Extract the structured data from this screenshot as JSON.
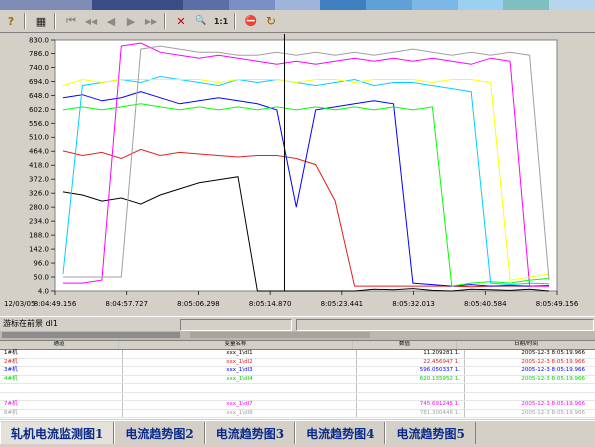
{
  "colorbar": [
    "#7f8db6",
    "#7f8db6",
    "#3a4d86",
    "#3a4d86",
    "#5b6ea6",
    "#7a8fc6",
    "#9fb4d8",
    "#3f7fbf",
    "#5fa0d8",
    "#7cb8e6",
    "#9cd0f0",
    "#7fbfbf",
    "#b6d6ee"
  ],
  "toolbar": {
    "help_icon": "?",
    "grid_icon": "▦",
    "first_icon": "⏮",
    "prev_icon": "◀◀",
    "back_icon": "◀",
    "play_icon": "▶",
    "forward_icon": "▶▶",
    "zoom_fit_icon": "✕",
    "zoom_icon": "🔍",
    "scale_label": "1:1",
    "stop_icon": "⛔",
    "refresh_icon": "↻"
  },
  "chart_data": {
    "type": "line",
    "date_label": "12/03/05",
    "y_ticks": [
      "830.0",
      "786.0",
      "740.0",
      "694.0",
      "648.0",
      "602.0",
      "556.0",
      "510.0",
      "464.0",
      "418.0",
      "372.0",
      "326.0",
      "280.0",
      "234.0",
      "188.0",
      "142.0",
      "96.0",
      "50.0",
      "4.0"
    ],
    "ylim": [
      4.0,
      830.0
    ],
    "x_ticks": [
      "8:04:49.156",
      "8:04:57.727",
      "8:05:06.298",
      "8:05:14.870",
      "8:05:23.441",
      "8:05:32.013",
      "8:05:40.584",
      "8:05:49.156"
    ],
    "cursor_x": 3.2,
    "grid": false,
    "series": [
      {
        "color": "#000000",
        "values": [
          330,
          320,
          300,
          310,
          290,
          320,
          340,
          360,
          370,
          380,
          4,
          4,
          4,
          4,
          4,
          4,
          10,
          8,
          12,
          6,
          4,
          10,
          8,
          6,
          10,
          4
        ]
      },
      {
        "color": "#e02020",
        "values": [
          465,
          450,
          460,
          440,
          470,
          450,
          460,
          455,
          450,
          445,
          450,
          450,
          440,
          420,
          300,
          20,
          20,
          20,
          20,
          20,
          20,
          18,
          20,
          20,
          20,
          20
        ]
      },
      {
        "color": "#0000ff",
        "values": [
          640,
          650,
          630,
          640,
          660,
          640,
          620,
          630,
          640,
          630,
          620,
          600,
          280,
          600,
          610,
          620,
          630,
          620,
          30,
          25,
          20,
          25,
          20,
          22,
          20,
          22
        ]
      },
      {
        "color": "#00d0ff",
        "values": [
          60,
          680,
          690,
          700,
          690,
          710,
          700,
          690,
          680,
          700,
          690,
          700,
          690,
          680,
          690,
          700,
          680,
          690,
          690,
          680,
          670,
          660,
          30,
          25,
          30,
          28
        ]
      },
      {
        "color": "#ff00ff",
        "values": [
          30,
          30,
          40,
          810,
          820,
          790,
          780,
          770,
          780,
          770,
          760,
          750,
          760,
          750,
          760,
          770,
          760,
          770,
          760,
          770,
          760,
          750,
          770,
          760,
          20,
          20
        ]
      },
      {
        "color": "#00ff00",
        "values": [
          600,
          610,
          600,
          610,
          620,
          610,
          600,
          610,
          600,
          610,
          600,
          610,
          600,
          610,
          600,
          610,
          600,
          610,
          600,
          610,
          20,
          30,
          35,
          30,
          40,
          45
        ]
      },
      {
        "color": "#ffff00",
        "values": [
          680,
          700,
          690,
          700,
          700,
          700,
          700,
          700,
          690,
          700,
          700,
          700,
          690,
          700,
          700,
          690,
          700,
          700,
          700,
          690,
          700,
          700,
          690,
          40,
          50,
          60
        ]
      },
      {
        "color": "#a0a0a0",
        "values": [
          50,
          50,
          50,
          50,
          800,
          810,
          800,
          790,
          790,
          780,
          780,
          790,
          780,
          790,
          780,
          790,
          780,
          790,
          800,
          790,
          780,
          790,
          780,
          790,
          780,
          40
        ]
      }
    ]
  },
  "status": {
    "message": "游标在前景 dl1"
  },
  "table": {
    "headers": [
      "通道",
      "变量名称",
      "数值",
      "日期/时间"
    ],
    "rows": [
      {
        "name": "1#机",
        "var": "xxx_1\\dl1",
        "value": "11.209281 1.",
        "time": "2005-12-3 8:05:19.966",
        "color": "#000000"
      },
      {
        "name": "2#机",
        "var": "xxx_1\\dl2",
        "value": "22.456947 1.",
        "time": "2005-12-3 8:05:19.966",
        "color": "#e02020"
      },
      {
        "name": "3#机",
        "var": "xxx_1\\dl3",
        "value": "596.050337 1.",
        "time": "2005-12-3 8:05:19.966",
        "color": "#0000ff"
      },
      {
        "name": "4#机",
        "var": "xxx_1\\dl4",
        "value": "620.135952 1.",
        "time": "2005-12-3 8:05:19.966",
        "color": "#00d000"
      },
      {
        "name": "",
        "var": "",
        "value": "",
        "time": "",
        "color": "#000000"
      },
      {
        "name": "",
        "var": "",
        "value": "",
        "time": "",
        "color": "#000000"
      },
      {
        "name": "7#机",
        "var": "xxx_1\\dl7",
        "value": "745.691245 1.",
        "time": "2005-12-3 8:05:19.966",
        "color": "#ff00ff"
      },
      {
        "name": "8#机",
        "var": "xxx_1\\dl8",
        "value": "781.300446 1.",
        "time": "2005-12-3 8:05:19.966",
        "color": "#a0a0a0"
      }
    ]
  },
  "tabs": [
    {
      "label": "轧机电流监测图1",
      "active": true
    },
    {
      "label": "电流趋势图2",
      "active": false
    },
    {
      "label": "电流趋势图3",
      "active": false
    },
    {
      "label": "电流趋势图4",
      "active": false
    },
    {
      "label": "电流趋势图5",
      "active": false
    }
  ]
}
